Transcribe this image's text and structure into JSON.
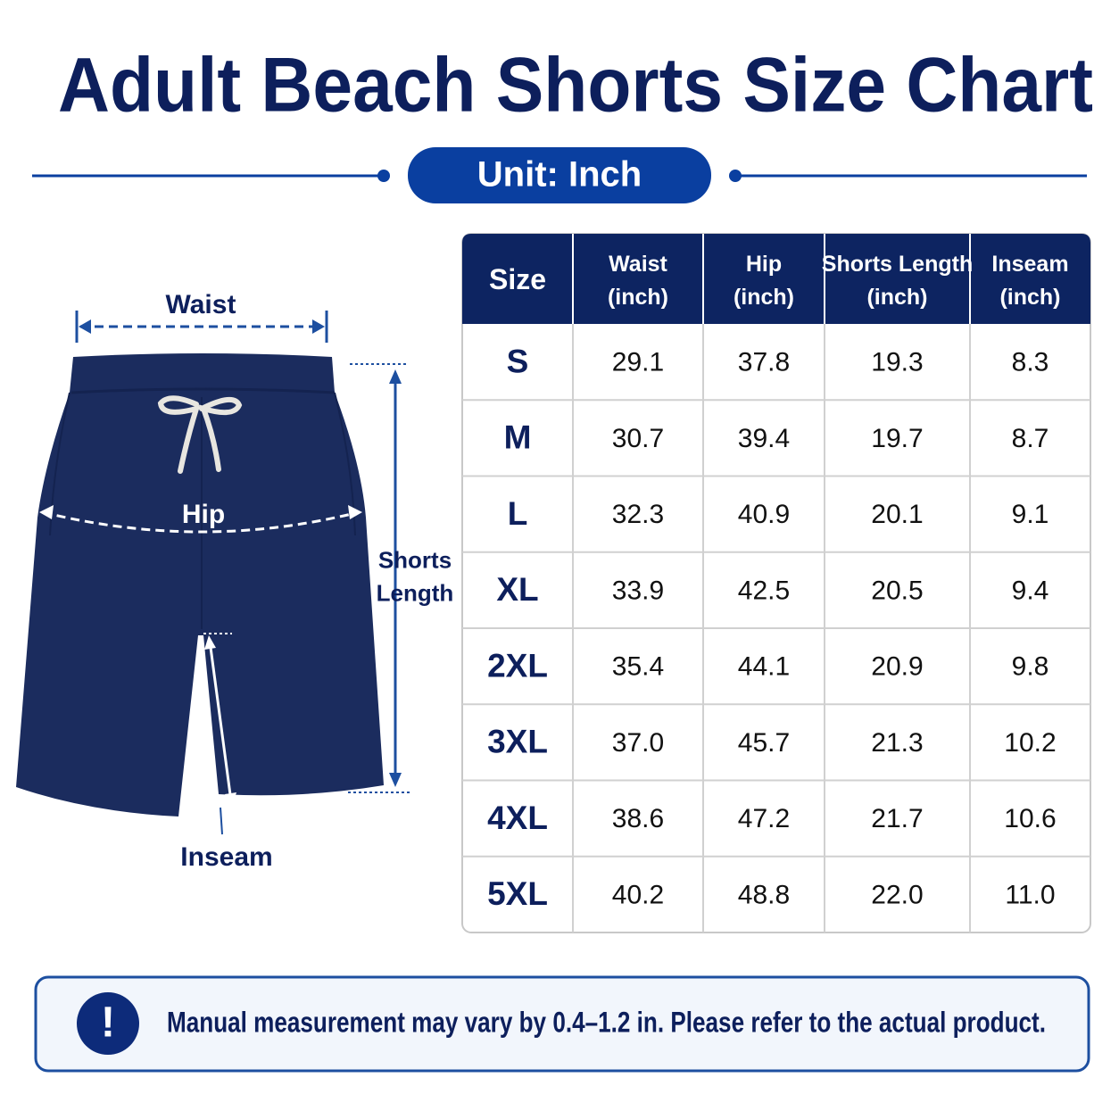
{
  "header": {
    "title": "Adult Beach Shorts Size Chart",
    "unit": "Unit: Inch"
  },
  "diagram": {
    "waist": "Waist",
    "hip": "Hip",
    "shorts_length": "Shorts\nLength",
    "inseam": "Inseam"
  },
  "table": {
    "headers": [
      "Size",
      "Waist\n(inch)",
      "Hip\n(inch)",
      "Shorts Length\n(inch)",
      "Inseam\n(inch)"
    ],
    "rows": [
      [
        "S",
        "29.1",
        "37.8",
        "19.3",
        "8.3"
      ],
      [
        "M",
        "30.7",
        "39.4",
        "19.7",
        "8.7"
      ],
      [
        "L",
        "32.3",
        "40.9",
        "20.1",
        "9.1"
      ],
      [
        "XL",
        "33.9",
        "42.5",
        "20.5",
        "9.4"
      ],
      [
        "2XL",
        "35.4",
        "44.1",
        "20.9",
        "9.8"
      ],
      [
        "3XL",
        "37.0",
        "45.7",
        "21.3",
        "10.2"
      ],
      [
        "4XL",
        "38.6",
        "47.2",
        "21.7",
        "10.6"
      ],
      [
        "5XL",
        "40.2",
        "48.8",
        "22.0",
        "11.0"
      ]
    ]
  },
  "note": {
    "icon": "!",
    "text": "Manual measurement may vary by 0.4–1.2 in. Please refer to the actual product."
  }
}
